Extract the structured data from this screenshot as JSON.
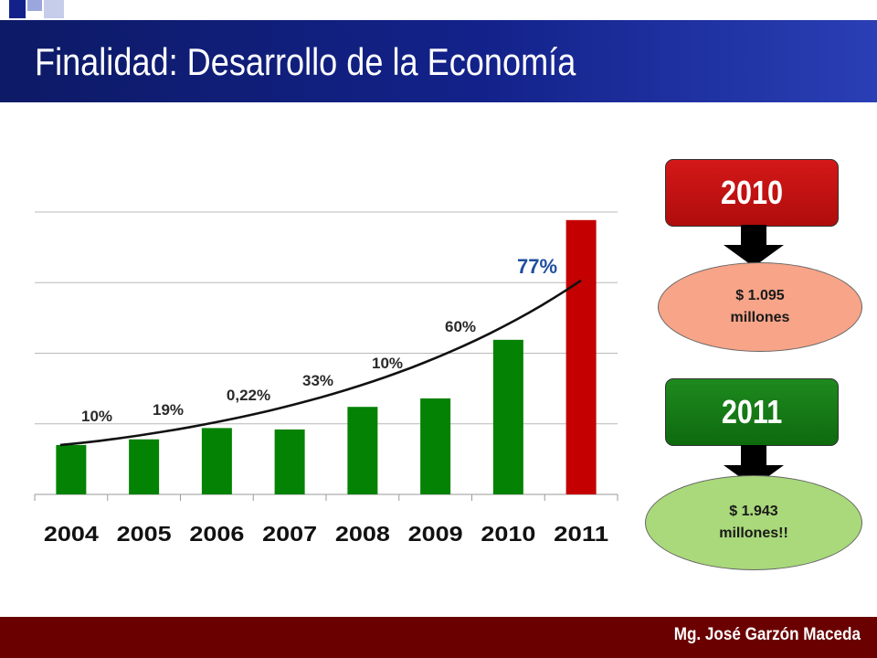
{
  "slide": {
    "title": "Finalidad: Desarrollo de la Economía",
    "author": "Mg. José Garzón Maceda"
  },
  "colors": {
    "header": "#13228a",
    "footer": "#6a0000",
    "bar_green": "#048204",
    "bar_red": "#c40000",
    "label_blue": "#1f4e9e"
  },
  "chart_data": {
    "type": "bar",
    "categories": [
      "2004",
      "2005",
      "2006",
      "2007",
      "2008",
      "2009",
      "2010",
      "2011"
    ],
    "values": [
      350,
      390,
      470,
      460,
      620,
      680,
      1095,
      1943
    ],
    "ylim": [
      0,
      2000
    ],
    "grid": true,
    "bar_colors": [
      "#048204",
      "#048204",
      "#048204",
      "#048204",
      "#048204",
      "#048204",
      "#048204",
      "#c40000"
    ],
    "data_labels": [
      "10%",
      "19%",
      "0,22%",
      "33%",
      "10%",
      "60%",
      "",
      "77%"
    ],
    "trendline": "exponential"
  },
  "callouts": [
    {
      "year": "2010",
      "amount_line1": "$ 1.095",
      "amount_line2": "millones"
    },
    {
      "year": "2011",
      "amount_line1": "$ 1.943",
      "amount_line2": "millones!!"
    }
  ]
}
